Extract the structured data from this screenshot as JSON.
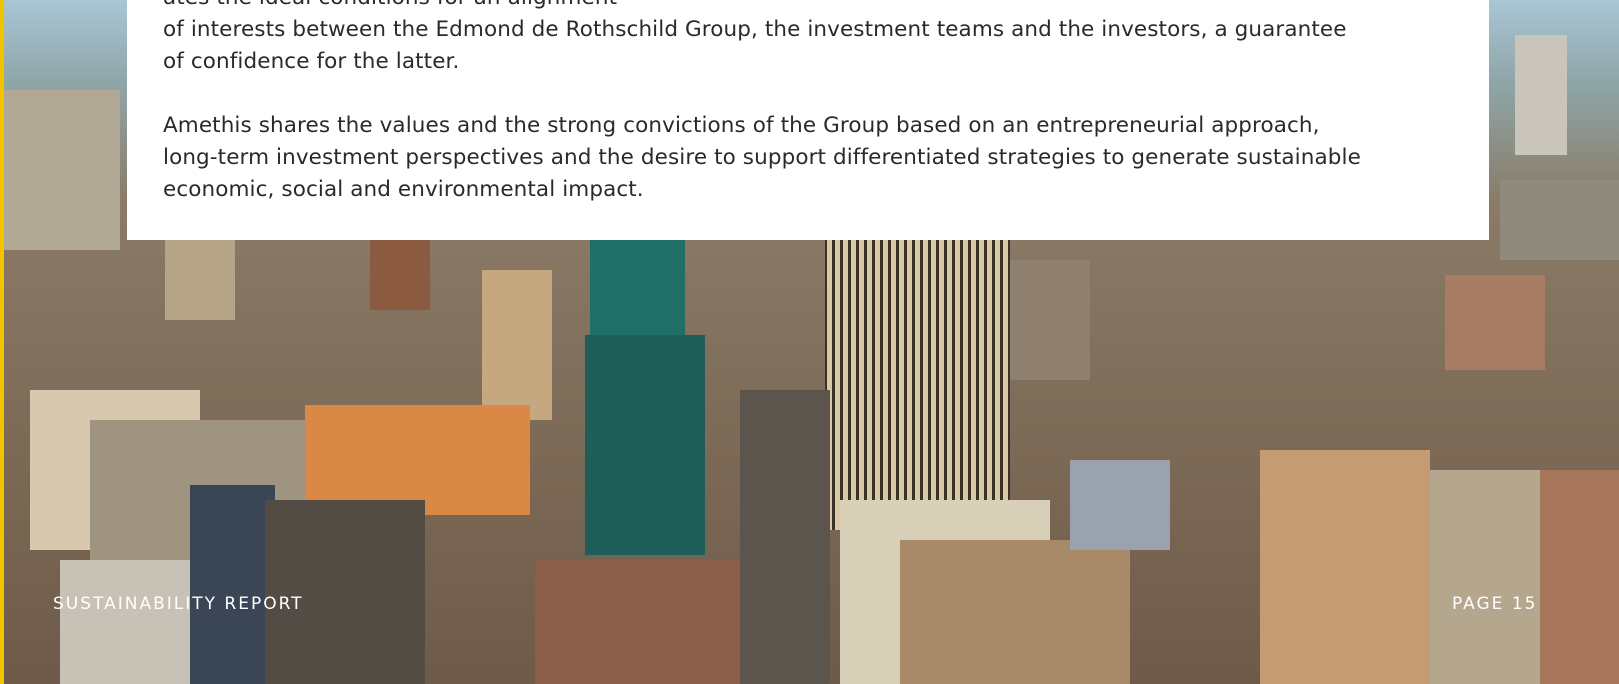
{
  "body": {
    "paragraphs": [
      [
        "ates the ideal conditions for an alignment",
        "of interests between the Edmond de Rothschild Group, the investment teams and the investors, a guarantee",
        "of confidence for the latter."
      ],
      [
        "Amethis shares the values and the strong convictions of the Group based on an entrepreneurial approach,",
        "long-term investment perspectives and the desire to support differentiated strategies to generate sustainable",
        "economic, social and environmental impact."
      ]
    ]
  },
  "footer": {
    "left": "SUSTAINABILITY REPORT",
    "right": "PAGE 15"
  }
}
